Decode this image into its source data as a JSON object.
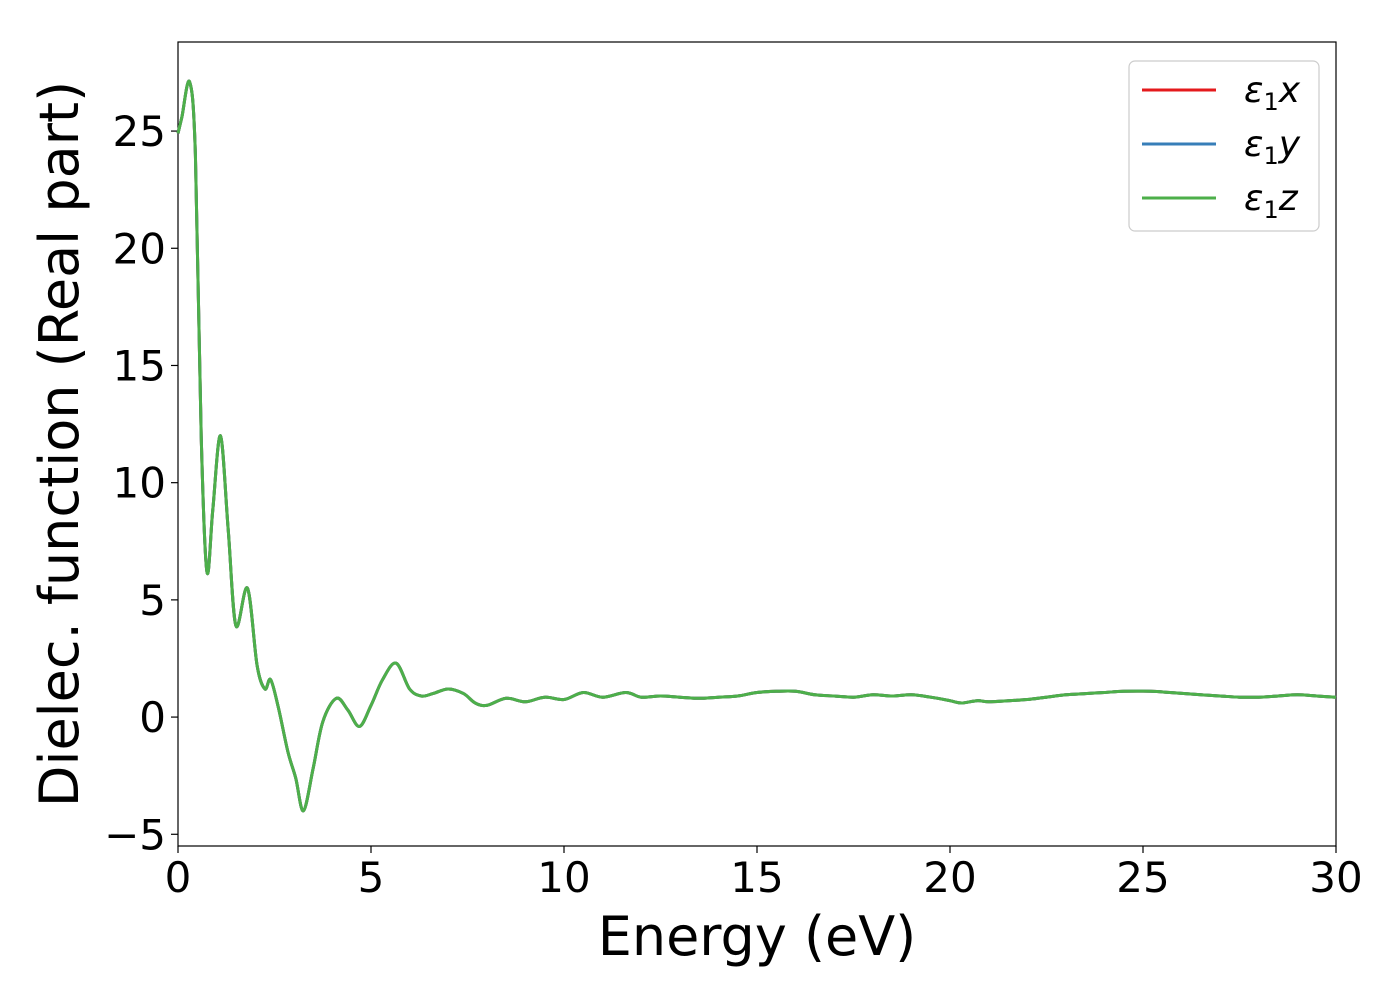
{
  "chart_data": {
    "type": "line",
    "title": "",
    "xlabel": "Energy (eV)",
    "ylabel": "Dielec. function (Real part)",
    "xlim": [
      0,
      30
    ],
    "ylim": [
      -5.5,
      28.8
    ],
    "xticks": [
      0,
      5,
      10,
      15,
      20,
      25,
      30
    ],
    "yticks": [
      -5,
      0,
      5,
      10,
      15,
      20,
      25
    ],
    "xtick_labels": [
      "0",
      "5",
      "10",
      "15",
      "20",
      "25",
      "30"
    ],
    "ytick_labels": [
      "−5",
      "0",
      "5",
      "10",
      "15",
      "20",
      "25"
    ],
    "grid": false,
    "legend_position": "top-right",
    "series": [
      {
        "name": "x",
        "color": "#e41a1c"
      },
      {
        "name": "y",
        "color": "#377eb8"
      },
      {
        "name": "z",
        "color": "#4daf4a"
      }
    ],
    "legend_symbol": "ε",
    "legend_subscript": "1",
    "x": [
      0,
      0.1,
      0.3,
      0.45,
      0.6,
      0.75,
      0.9,
      1.1,
      1.3,
      1.5,
      1.8,
      2.05,
      2.25,
      2.4,
      2.6,
      2.85,
      3.05,
      3.25,
      3.5,
      3.75,
      4.1,
      4.4,
      4.7,
      5.0,
      5.3,
      5.65,
      6.0,
      6.3,
      6.6,
      7.0,
      7.4,
      7.7,
      8.0,
      8.5,
      9.0,
      9.5,
      10.0,
      10.5,
      11.0,
      11.6,
      12.0,
      12.5,
      13.0,
      13.5,
      14.0,
      14.5,
      15.0,
      15.5,
      16.0,
      16.5,
      17.0,
      17.5,
      18.0,
      18.5,
      19.0,
      19.5,
      20.0,
      20.3,
      20.7,
      21.0,
      21.5,
      22.0,
      22.5,
      23.0,
      23.5,
      24.0,
      24.5,
      25.2,
      25.7,
      26.5,
      27.0,
      27.5,
      28.0,
      28.5,
      29.0,
      29.5,
      30.0
    ],
    "values": [
      24.9,
      25.6,
      27.1,
      24.0,
      12.0,
      6.2,
      8.8,
      12.0,
      8.0,
      3.9,
      5.5,
      2.2,
      1.2,
      1.6,
      0.4,
      -1.5,
      -2.6,
      -4.0,
      -2.2,
      -0.2,
      0.8,
      0.3,
      -0.4,
      0.5,
      1.6,
      2.3,
      1.2,
      0.9,
      1.0,
      1.2,
      1.0,
      0.6,
      0.5,
      0.8,
      0.65,
      0.85,
      0.75,
      1.05,
      0.85,
      1.05,
      0.85,
      0.9,
      0.85,
      0.8,
      0.85,
      0.9,
      1.05,
      1.1,
      1.1,
      0.95,
      0.9,
      0.85,
      0.95,
      0.9,
      0.95,
      0.85,
      0.7,
      0.6,
      0.7,
      0.65,
      0.7,
      0.75,
      0.85,
      0.95,
      1.0,
      1.05,
      1.1,
      1.1,
      1.05,
      0.95,
      0.9,
      0.85,
      0.85,
      0.9,
      0.95,
      0.9,
      0.85
    ]
  }
}
